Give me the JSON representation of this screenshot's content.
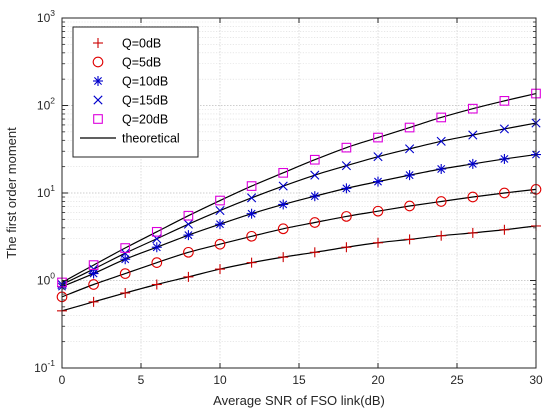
{
  "chart_data": {
    "type": "line",
    "xlabel": "Average SNR of FSO link(dB)",
    "ylabel": "The first order moment",
    "xlim": [
      0,
      30
    ],
    "ylim": [
      0.1,
      1000
    ],
    "yscale": "log",
    "grid": true,
    "legend_position": "top-left",
    "x_ticks": [
      "0",
      "5",
      "10",
      "15",
      "20",
      "25",
      "30"
    ],
    "y_ticks": [
      {
        "base": "10",
        "exp": "-1",
        "value": 0.1
      },
      {
        "base": "10",
        "exp": "0",
        "value": 1
      },
      {
        "base": "10",
        "exp": "1",
        "value": 10
      },
      {
        "base": "10",
        "exp": "2",
        "value": 100
      },
      {
        "base": "10",
        "exp": "3",
        "value": 1000
      }
    ],
    "x": [
      0,
      2,
      4,
      6,
      8,
      10,
      12,
      14,
      16,
      18,
      20,
      22,
      24,
      26,
      28,
      30
    ],
    "series": [
      {
        "name": "Q=0dB",
        "marker": "plus",
        "color": "#cc0000",
        "values": [
          0.45,
          0.57,
          0.72,
          0.9,
          1.1,
          1.35,
          1.6,
          1.85,
          2.1,
          2.4,
          2.7,
          2.95,
          3.25,
          3.5,
          3.8,
          4.2
        ]
      },
      {
        "name": "Q=5dB",
        "marker": "circle",
        "color": "#e00000",
        "values": [
          0.65,
          0.9,
          1.2,
          1.6,
          2.1,
          2.6,
          3.2,
          3.9,
          4.6,
          5.4,
          6.2,
          7.1,
          8.0,
          9.0,
          10.0,
          11.0
        ]
      },
      {
        "name": "Q=10dB",
        "marker": "asterisk",
        "color": "#0000cc",
        "values": [
          0.85,
          1.2,
          1.75,
          2.4,
          3.3,
          4.4,
          5.8,
          7.4,
          9.2,
          11.3,
          13.5,
          16.0,
          18.8,
          21.5,
          24.5,
          27.5
        ]
      },
      {
        "name": "Q=15dB",
        "marker": "cross",
        "color": "#0000cc",
        "values": [
          0.9,
          1.35,
          2.05,
          3.0,
          4.4,
          6.3,
          8.8,
          12.0,
          16.0,
          20.5,
          26.0,
          32.0,
          39.0,
          46.0,
          54.0,
          63.0
        ]
      },
      {
        "name": "Q=20dB",
        "marker": "square",
        "color": "#dd00dd",
        "values": [
          0.95,
          1.5,
          2.35,
          3.6,
          5.5,
          8.2,
          12.0,
          17.0,
          24.0,
          33.0,
          43.0,
          56.0,
          73.0,
          92.0,
          113.0,
          137.0
        ]
      }
    ],
    "theoretical": {
      "name": "theoretical",
      "color": "#000000"
    }
  }
}
